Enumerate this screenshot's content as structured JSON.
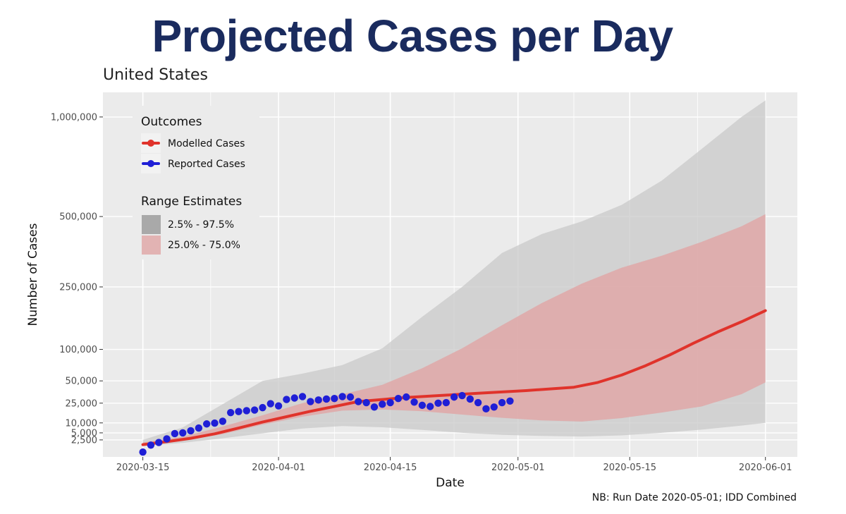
{
  "header": {
    "title": "Projected Cases per Day",
    "subtitle": "United States",
    "footnote": "NB: Run Date 2020-05-01; IDD Combined"
  },
  "colors": {
    "modelled": "#e0332b",
    "reported": "#1f1fd6",
    "range_outer": "#c9c9c9",
    "range_inner": "#e2a2a2",
    "panel": "#ebebeb",
    "grid": "#ffffff",
    "title": "#1a2b5e"
  },
  "chart_data": {
    "type": "line",
    "title": "Projected Cases per Day",
    "subtitle": "United States",
    "xlabel": "Date",
    "ylabel": "Number of Cases",
    "x_axis": {
      "type": "date",
      "range": [
        "2020-03-10",
        "2020-06-05"
      ],
      "ticks": [
        "2020-03-15",
        "2020-04-01",
        "2020-04-15",
        "2020-05-01",
        "2020-05-15",
        "2020-06-01"
      ]
    },
    "y_axis": {
      "scale": "sqrt",
      "range": [
        0,
        1150000
      ],
      "ticks": [
        2500,
        5000,
        10000,
        25000,
        50000,
        100000,
        250000,
        500000,
        1000000
      ],
      "tick_labels": [
        "2,500",
        "5,000",
        "10,000",
        "25,000",
        "50,000",
        "100,000",
        "250,000",
        "500,000",
        "1,000,000"
      ]
    },
    "grid": true,
    "legend": {
      "position": "top-left",
      "outcomes_title": "Outcomes",
      "range_title": "Range Estimates",
      "items": {
        "modelled": "Modelled Cases",
        "reported": "Reported Cases",
        "outer": "2.5% - 97.5%",
        "inner": "25.0% - 75.0%"
      }
    },
    "series": [
      {
        "name": "Modelled Cases",
        "kind": "line",
        "x": [
          "2020-03-15",
          "2020-03-18",
          "2020-03-21",
          "2020-03-24",
          "2020-03-27",
          "2020-03-30",
          "2020-04-02",
          "2020-04-05",
          "2020-04-08",
          "2020-04-11",
          "2020-04-14",
          "2020-04-17",
          "2020-04-20",
          "2020-04-23",
          "2020-04-26",
          "2020-04-29",
          "2020-05-02",
          "2020-05-05",
          "2020-05-08",
          "2020-05-11",
          "2020-05-14",
          "2020-05-17",
          "2020-05-20",
          "2020-05-23",
          "2020-05-26",
          "2020-05-29",
          "2020-06-01"
        ],
        "y": [
          1300,
          2000,
          3000,
          4600,
          7200,
          10500,
          14000,
          18000,
          22000,
          26500,
          28500,
          30500,
          32000,
          33500,
          35000,
          36500,
          38000,
          40000,
          42000,
          48000,
          58000,
          72000,
          90000,
          112000,
          135000,
          158000,
          185000
        ]
      },
      {
        "name": "Reported Cases",
        "kind": "points",
        "x": [
          "2020-03-15",
          "2020-03-16",
          "2020-03-17",
          "2020-03-18",
          "2020-03-19",
          "2020-03-20",
          "2020-03-21",
          "2020-03-22",
          "2020-03-23",
          "2020-03-24",
          "2020-03-25",
          "2020-03-26",
          "2020-03-27",
          "2020-03-28",
          "2020-03-29",
          "2020-03-30",
          "2020-03-31",
          "2020-04-01",
          "2020-04-02",
          "2020-04-03",
          "2020-04-04",
          "2020-04-05",
          "2020-04-06",
          "2020-04-07",
          "2020-04-08",
          "2020-04-09",
          "2020-04-10",
          "2020-04-11",
          "2020-04-12",
          "2020-04-13",
          "2020-04-14",
          "2020-04-15",
          "2020-04-16",
          "2020-04-17",
          "2020-04-18",
          "2020-04-19",
          "2020-04-20",
          "2020-04-21",
          "2020-04-22",
          "2020-04-23",
          "2020-04-24",
          "2020-04-25",
          "2020-04-26",
          "2020-04-27",
          "2020-04-28",
          "2020-04-29",
          "2020-04-30"
        ],
        "y": [
          200,
          1200,
          1800,
          2800,
          4700,
          5000,
          5900,
          7200,
          9400,
          9900,
          11000,
          17000,
          17800,
          18500,
          19000,
          21000,
          24500,
          22500,
          28500,
          30000,
          31500,
          26500,
          28000,
          29000,
          29500,
          31500,
          31000,
          26500,
          25500,
          21500,
          24000,
          25500,
          29500,
          31000,
          26000,
          23000,
          22000,
          25000,
          25500,
          31000,
          32500,
          29000,
          25500,
          20000,
          21500,
          25500,
          27000
        ]
      },
      {
        "name": "2.5% - 97.5%",
        "kind": "band",
        "x": [
          "2020-03-15",
          "2020-03-20",
          "2020-03-25",
          "2020-03-30",
          "2020-04-04",
          "2020-04-09",
          "2020-04-14",
          "2020-04-19",
          "2020-04-24",
          "2020-04-29",
          "2020-05-04",
          "2020-05-09",
          "2020-05-14",
          "2020-05-19",
          "2020-05-24",
          "2020-05-29",
          "2020-06-01"
        ],
        "low": [
          1000,
          1700,
          3000,
          4800,
          7000,
          8200,
          7600,
          6300,
          5000,
          4200,
          3800,
          3600,
          4000,
          5000,
          6400,
          8500,
          10000
        ],
        "high": [
          2500,
          7500,
          24000,
          50000,
          60000,
          73000,
          102000,
          170000,
          250000,
          360000,
          430000,
          480000,
          550000,
          660000,
          820000,
          1000000,
          1100000
        ]
      },
      {
        "name": "25.0% - 75.0%",
        "kind": "band",
        "x": [
          "2020-03-15",
          "2020-03-20",
          "2020-03-25",
          "2020-03-30",
          "2020-04-04",
          "2020-04-09",
          "2020-04-14",
          "2020-04-19",
          "2020-04-24",
          "2020-04-29",
          "2020-05-04",
          "2020-05-09",
          "2020-05-14",
          "2020-05-19",
          "2020-05-24",
          "2020-05-29",
          "2020-06-01"
        ],
        "low": [
          1400,
          2300,
          4500,
          9000,
          14000,
          18500,
          19500,
          18000,
          15500,
          13200,
          11500,
          10800,
          13000,
          17000,
          22000,
          34000,
          48000
        ],
        "high": [
          1800,
          3500,
          8000,
          15000,
          25000,
          34000,
          45000,
          68000,
          102000,
          150000,
          205000,
          260000,
          310000,
          350000,
          400000,
          460000,
          510000
        ]
      }
    ]
  }
}
